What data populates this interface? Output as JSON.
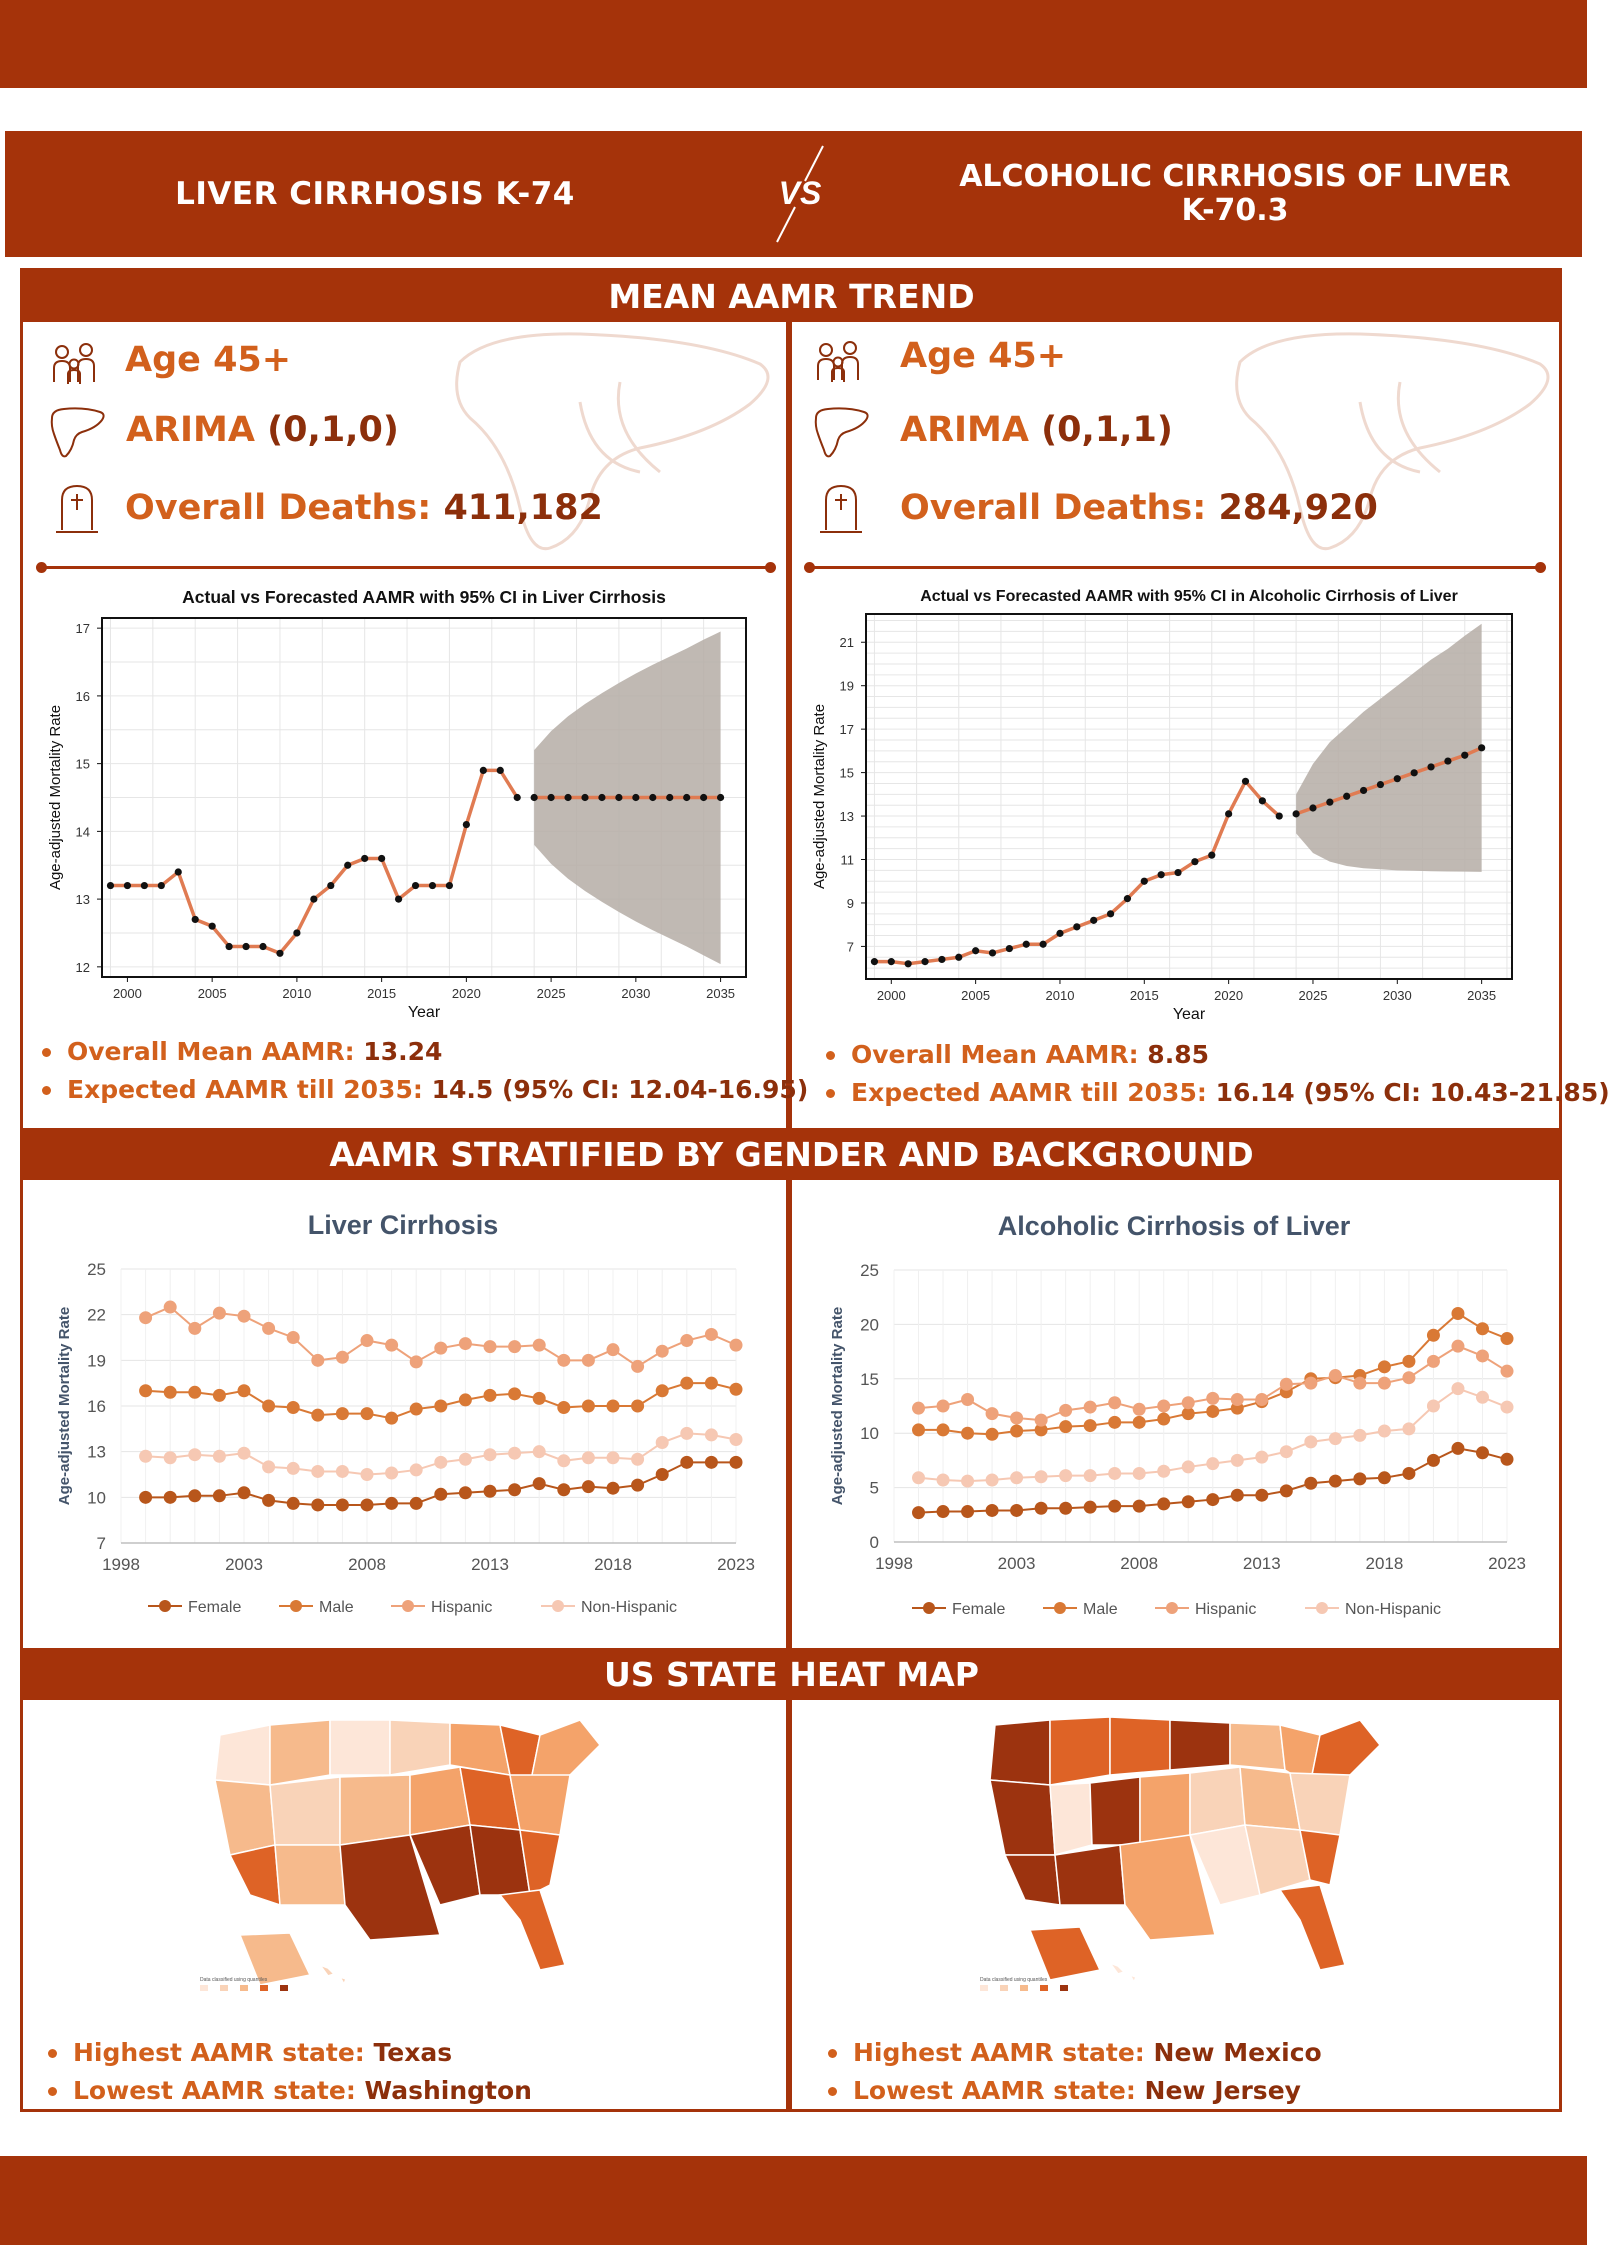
{
  "header": {
    "left_title": "LIVER CIRRHOSIS K-74",
    "vs_label": "VS",
    "right_title_line1": "ALCOHOLIC CIRRHOSIS OF LIVER",
    "right_title_line2": "K-70.3"
  },
  "sections": {
    "trend": "MEAN AAMR TREND",
    "stratified": "AAMR STRATIFIED BY GENDER AND BACKGROUND",
    "heatmap": "US STATE HEAT MAP"
  },
  "left": {
    "age_label": "Age 45+",
    "arima_label": "ARIMA",
    "arima_value": "(0,1,0)",
    "deaths_label": "Overall Deaths:",
    "deaths_value": "411,182",
    "mean_label": "Overall Mean AAMR:",
    "mean_value": "13.24",
    "expected_label": "Expected AAMR till 2035:",
    "expected_value": "14.5 (95% CI: 12.04-16.95)",
    "highest_label": "Highest AAMR state:",
    "highest_value": "Texas",
    "lowest_label": "Lowest AAMR state:",
    "lowest_value": "Washington"
  },
  "right": {
    "age_label": "Age 45+",
    "arima_label": "ARIMA",
    "arima_value": "(0,1,1)",
    "deaths_label": "Overall Deaths:",
    "deaths_value": "284,920",
    "mean_label": "Overall Mean AAMR:",
    "mean_value": "8.85",
    "expected_label": "Expected AAMR till 2035:",
    "expected_value": "16.14 (95% CI: 10.43-21.85)",
    "highest_label": "Highest AAMR state:",
    "highest_value": "New Mexico",
    "lowest_label": "Lowest AAMR state:",
    "lowest_value": "New Jersey"
  },
  "colors": {
    "primary": "#a5330a",
    "accent": "#d2601c",
    "female": "#b8561b",
    "male": "#d97935",
    "hispanic": "#eea27a",
    "non_hispanic": "#f6c8b3",
    "forecast_band": "#b5ada6"
  },
  "map_legend_left": "Data classified using quantiles",
  "map_legend_right": "Data classified using quantiles",
  "chart_data": [
    {
      "type": "line",
      "title": "Actual vs Forecasted AAMR with 95% CI in Liver Cirrhosis",
      "xlabel": "Year",
      "ylabel": "Age-adjusted Mortality Rate",
      "xlim": [
        1998.5,
        2036.5
      ],
      "ylim": [
        11.85,
        17.15
      ],
      "xticks": [
        2000,
        2005,
        2010,
        2015,
        2020,
        2025,
        2030,
        2035
      ],
      "yticks": [
        12,
        13,
        14,
        15,
        16,
        17
      ],
      "grid": true,
      "series": [
        {
          "x": [
            1999,
            2000,
            2001,
            2002,
            2003,
            2004,
            2005,
            2006,
            2007,
            2008,
            2009,
            2010,
            2011,
            2012,
            2013,
            2014,
            2015,
            2016,
            2017,
            2018,
            2019,
            2020,
            2021,
            2022,
            2023
          ],
          "values": [
            13.2,
            13.2,
            13.2,
            13.2,
            13.4,
            12.7,
            12.6,
            12.3,
            12.3,
            12.3,
            12.2,
            12.5,
            13.0,
            13.2,
            13.5,
            13.6,
            13.6,
            13.0,
            13.2,
            13.2,
            13.2,
            14.1,
            14.9,
            14.9,
            14.5
          ]
        },
        {
          "x": [
            2024,
            2025,
            2026,
            2027,
            2028,
            2029,
            2030,
            2031,
            2032,
            2033,
            2034,
            2035
          ],
          "values": [
            14.5,
            14.5,
            14.5,
            14.5,
            14.5,
            14.5,
            14.5,
            14.5,
            14.5,
            14.5,
            14.5,
            14.5
          ]
        }
      ],
      "ci_band": {
        "x": [
          2024,
          2025,
          2026,
          2027,
          2028,
          2029,
          2030,
          2031,
          2032,
          2033,
          2034,
          2035
        ],
        "lower": [
          13.8,
          13.52,
          13.3,
          13.12,
          12.96,
          12.81,
          12.67,
          12.54,
          12.42,
          12.3,
          12.17,
          12.04
        ],
        "upper": [
          15.2,
          15.48,
          15.7,
          15.88,
          16.04,
          16.19,
          16.33,
          16.46,
          16.58,
          16.7,
          16.83,
          16.95
        ]
      }
    },
    {
      "type": "line",
      "title": "Actual vs Forecasted AAMR with 95% CI in Alcoholic Cirrhosis of Liver",
      "xlabel": "Year",
      "ylabel": "Age-adjusted Mortality Rate",
      "xlim": [
        1998.5,
        2036.8
      ],
      "ylim": [
        5.5,
        22.3
      ],
      "xticks": [
        2000,
        2005,
        2010,
        2015,
        2020,
        2025,
        2030,
        2035
      ],
      "yticks": [
        7,
        9,
        11,
        13,
        15,
        17,
        19,
        21
      ],
      "grid": true,
      "series": [
        {
          "x": [
            1999,
            2000,
            2001,
            2002,
            2003,
            2004,
            2005,
            2006,
            2007,
            2008,
            2009,
            2010,
            2011,
            2012,
            2013,
            2014,
            2015,
            2016,
            2017,
            2018,
            2019,
            2020,
            2021,
            2022,
            2023
          ],
          "values": [
            6.3,
            6.3,
            6.2,
            6.3,
            6.4,
            6.5,
            6.8,
            6.7,
            6.9,
            7.1,
            7.1,
            7.6,
            7.9,
            8.2,
            8.5,
            9.2,
            10.0,
            10.3,
            10.4,
            10.9,
            11.2,
            13.1,
            14.6,
            13.7,
            13.0
          ]
        },
        {
          "x": [
            2024,
            2025,
            2026,
            2027,
            2028,
            2029,
            2030,
            2031,
            2032,
            2033,
            2034,
            2035
          ],
          "values": [
            13.1,
            13.37,
            13.64,
            13.91,
            14.18,
            14.45,
            14.72,
            14.99,
            15.26,
            15.53,
            15.8,
            16.14
          ]
        }
      ],
      "ci_band": {
        "x": [
          2024,
          2025,
          2026,
          2027,
          2028,
          2029,
          2030,
          2031,
          2032,
          2033,
          2034,
          2035
        ],
        "lower": [
          12.2,
          11.3,
          10.9,
          10.7,
          10.6,
          10.55,
          10.5,
          10.48,
          10.46,
          10.45,
          10.44,
          10.43
        ],
        "upper": [
          14.0,
          15.4,
          16.4,
          17.1,
          17.8,
          18.4,
          19.0,
          19.6,
          20.2,
          20.7,
          21.3,
          21.85
        ]
      }
    },
    {
      "type": "line",
      "title": "Liver Cirrhosis",
      "ylabel": "Age-adjusted Mortality Rate",
      "xlim": [
        1998,
        2023
      ],
      "ylim": [
        7,
        25
      ],
      "xticks": [
        1998,
        2003,
        2008,
        2013,
        2018,
        2023
      ],
      "yticks": [
        7,
        10,
        13,
        16,
        19,
        22,
        25
      ],
      "legend": "bottom",
      "x": [
        1999,
        2000,
        2001,
        2002,
        2003,
        2004,
        2005,
        2006,
        2007,
        2008,
        2009,
        2010,
        2011,
        2012,
        2013,
        2014,
        2015,
        2016,
        2017,
        2018,
        2019,
        2020,
        2021,
        2022,
        2023
      ],
      "series": [
        {
          "name": "Female",
          "values": [
            10.0,
            10.0,
            10.1,
            10.1,
            10.3,
            9.8,
            9.6,
            9.5,
            9.5,
            9.5,
            9.6,
            9.6,
            10.2,
            10.3,
            10.4,
            10.5,
            10.9,
            10.5,
            10.7,
            10.6,
            10.8,
            11.5,
            12.3,
            12.3,
            12.3
          ]
        },
        {
          "name": "Male",
          "values": [
            17.0,
            16.9,
            16.9,
            16.7,
            17.0,
            16.0,
            15.9,
            15.4,
            15.5,
            15.5,
            15.2,
            15.8,
            16.0,
            16.4,
            16.7,
            16.8,
            16.5,
            15.9,
            16.0,
            16.0,
            16.0,
            17.0,
            17.5,
            17.5,
            17.1
          ]
        },
        {
          "name": "Hispanic",
          "values": [
            21.8,
            22.5,
            21.1,
            22.1,
            21.9,
            21.1,
            20.5,
            19.0,
            19.2,
            20.3,
            20.0,
            18.9,
            19.8,
            20.1,
            19.9,
            19.9,
            20.0,
            19.0,
            19.0,
            19.7,
            18.6,
            19.6,
            20.3,
            20.7,
            20.0
          ]
        },
        {
          "name": "Non-Hispanic",
          "values": [
            12.7,
            12.6,
            12.8,
            12.7,
            12.9,
            12.0,
            11.9,
            11.7,
            11.7,
            11.5,
            11.6,
            11.8,
            12.3,
            12.5,
            12.8,
            12.9,
            13.0,
            12.4,
            12.6,
            12.6,
            12.5,
            13.6,
            14.2,
            14.1,
            13.8
          ]
        }
      ]
    },
    {
      "type": "line",
      "title": "Alcoholic Cirrhosis of Liver",
      "ylabel": "Age-adjusted Mortality Rate",
      "xlim": [
        1998,
        2023
      ],
      "ylim": [
        0,
        25
      ],
      "xticks": [
        1998,
        2003,
        2008,
        2013,
        2018,
        2023
      ],
      "yticks": [
        0,
        5,
        10,
        15,
        20,
        25
      ],
      "legend": "bottom",
      "x": [
        1999,
        2000,
        2001,
        2002,
        2003,
        2004,
        2005,
        2006,
        2007,
        2008,
        2009,
        2010,
        2011,
        2012,
        2013,
        2014,
        2015,
        2016,
        2017,
        2018,
        2019,
        2020,
        2021,
        2022,
        2023
      ],
      "series": [
        {
          "name": "Female",
          "values": [
            2.7,
            2.8,
            2.8,
            2.9,
            2.9,
            3.1,
            3.1,
            3.2,
            3.3,
            3.3,
            3.5,
            3.7,
            3.9,
            4.3,
            4.3,
            4.7,
            5.4,
            5.6,
            5.8,
            5.9,
            6.3,
            7.5,
            8.6,
            8.2,
            7.6
          ]
        },
        {
          "name": "Male",
          "values": [
            10.3,
            10.3,
            10.0,
            9.9,
            10.2,
            10.3,
            10.6,
            10.7,
            11.0,
            11.0,
            11.3,
            11.8,
            12.0,
            12.3,
            12.9,
            13.8,
            15.0,
            15.1,
            15.3,
            16.1,
            16.6,
            19.0,
            21.0,
            19.6,
            18.7
          ]
        },
        {
          "name": "Hispanic",
          "values": [
            12.3,
            12.5,
            13.1,
            11.8,
            11.4,
            11.2,
            12.1,
            12.4,
            12.8,
            12.2,
            12.5,
            12.8,
            13.2,
            13.1,
            13.1,
            14.5,
            14.6,
            15.3,
            14.6,
            14.6,
            15.1,
            16.6,
            18.0,
            17.1,
            15.7
          ]
        },
        {
          "name": "Non-Hispanic",
          "values": [
            5.9,
            5.7,
            5.6,
            5.7,
            5.9,
            6.0,
            6.1,
            6.1,
            6.3,
            6.3,
            6.5,
            6.9,
            7.2,
            7.5,
            7.8,
            8.3,
            9.2,
            9.5,
            9.8,
            10.2,
            10.4,
            12.5,
            14.1,
            13.3,
            12.4
          ]
        }
      ]
    }
  ]
}
